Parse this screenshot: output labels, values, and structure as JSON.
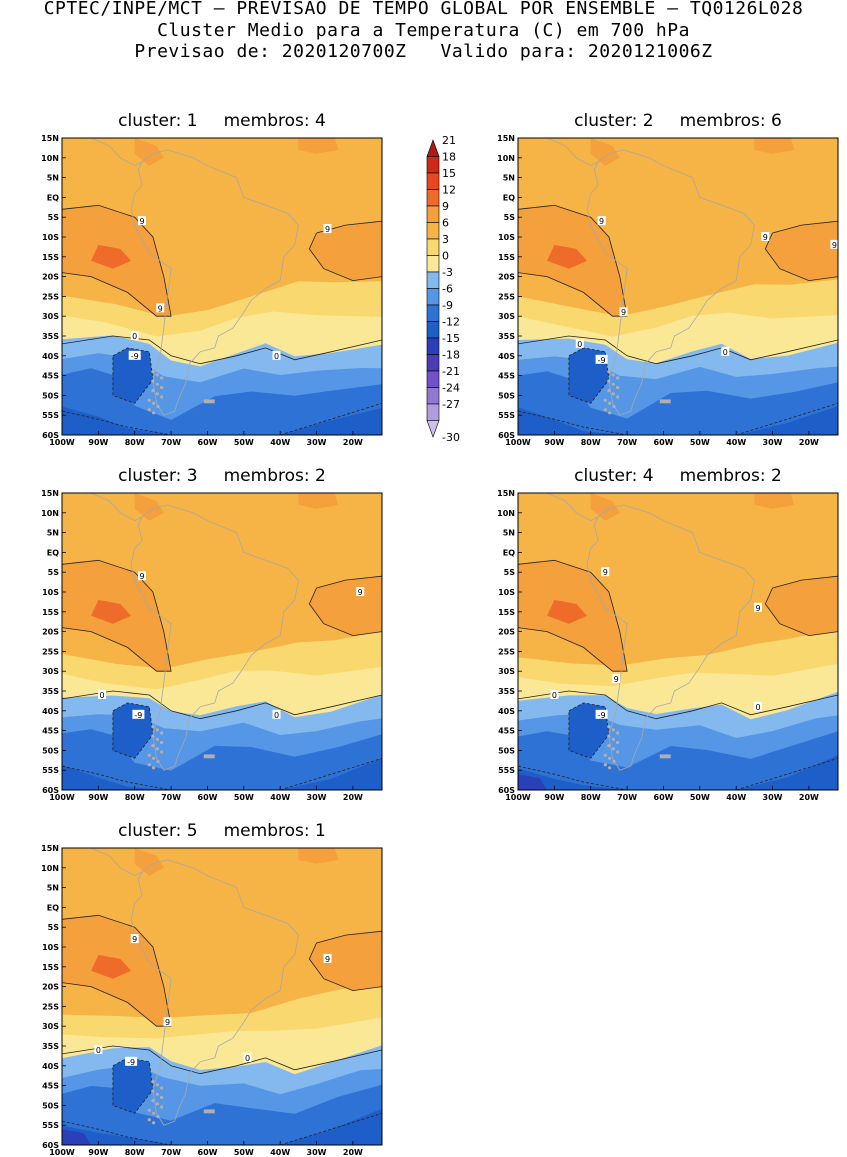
{
  "header": {
    "line1": "CPTEC/INPE/MCT — PREVISAO DE TEMPO GLOBAL POR ENSEMBLE — TQ0126L028",
    "line2": "Cluster Medio para a Temperatura (C) em 700 hPa",
    "line3": "Previsao de: 2020120700Z   Valido para: 2020121006Z"
  },
  "chart_data": {
    "type": "heatmap",
    "variable": "Temperatura (C) em 700 hPa",
    "x_ticks": [
      "100W",
      "90W",
      "80W",
      "70W",
      "60W",
      "50W",
      "40W",
      "30W",
      "20W"
    ],
    "y_ticks": [
      "15N",
      "10N",
      "5N",
      "EQ",
      "5S",
      "10S",
      "15S",
      "20S",
      "25S",
      "30S",
      "35S",
      "40S",
      "45S",
      "50S",
      "55S",
      "60S"
    ],
    "lon_range": [
      -100,
      -12
    ],
    "lat_range": [
      -60,
      15
    ],
    "colorbar": {
      "levels": [
        "21",
        "18",
        "15",
        "12",
        "9",
        "6",
        "3",
        "0",
        "-3",
        "-6",
        "-9",
        "-12",
        "-15",
        "-18",
        "-21",
        "-24",
        "-27",
        "-30"
      ],
      "colors": [
        "#b01a12",
        "#cf2a16",
        "#e8471f",
        "#ef6b2a",
        "#f4a03c",
        "#f6b346",
        "#fad870",
        "#fbe896",
        "#84b9f0",
        "#5596e6",
        "#2f72d6",
        "#1e5ec8",
        "#2a3fb8",
        "#4b3bb8",
        "#6f52c8",
        "#9078d4",
        "#b09de0",
        "#cdc0ec"
      ]
    },
    "panels": [
      {
        "cluster": "1",
        "membros": "4",
        "labels": [
          {
            "text": "9",
            "lon": -78,
            "lat": -6
          },
          {
            "text": "9",
            "lon": -27,
            "lat": -8
          },
          {
            "text": "9",
            "lon": -73,
            "lat": -28
          },
          {
            "text": "0",
            "lon": -80,
            "lat": -35
          },
          {
            "text": "-9",
            "lon": -80,
            "lat": -40
          },
          {
            "text": "0",
            "lon": -41,
            "lat": -40
          }
        ]
      },
      {
        "cluster": "2",
        "membros": "6",
        "labels": [
          {
            "text": "9",
            "lon": -77,
            "lat": -6
          },
          {
            "text": "9",
            "lon": -32,
            "lat": -10
          },
          {
            "text": "9",
            "lon": -13,
            "lat": -12
          },
          {
            "text": "9",
            "lon": -71,
            "lat": -29
          },
          {
            "text": "0",
            "lon": -83,
            "lat": -37
          },
          {
            "text": "-9",
            "lon": -77,
            "lat": -41
          },
          {
            "text": "0",
            "lon": -43,
            "lat": -39
          }
        ]
      },
      {
        "cluster": "3",
        "membros": "2",
        "labels": [
          {
            "text": "9",
            "lon": -78,
            "lat": -6
          },
          {
            "text": "9",
            "lon": -18,
            "lat": -10
          },
          {
            "text": "0",
            "lon": -89,
            "lat": -36
          },
          {
            "text": "-9",
            "lon": -79,
            "lat": -41
          },
          {
            "text": "0",
            "lon": -41,
            "lat": -41
          }
        ]
      },
      {
        "cluster": "4",
        "membros": "2",
        "labels": [
          {
            "text": "9",
            "lon": -76,
            "lat": -5
          },
          {
            "text": "9",
            "lon": -34,
            "lat": -14
          },
          {
            "text": "9",
            "lon": -73,
            "lat": -32
          },
          {
            "text": "0",
            "lon": -90,
            "lat": -36
          },
          {
            "text": "-9",
            "lon": -77,
            "lat": -41
          },
          {
            "text": "0",
            "lon": -34,
            "lat": -39
          }
        ]
      },
      {
        "cluster": "5",
        "membros": "1",
        "labels": [
          {
            "text": "9",
            "lon": -80,
            "lat": -8
          },
          {
            "text": "9",
            "lon": -27,
            "lat": -13
          },
          {
            "text": "9",
            "lon": -71,
            "lat": -29
          },
          {
            "text": "0",
            "lon": -90,
            "lat": -36
          },
          {
            "text": "-9",
            "lon": -81,
            "lat": -39
          },
          {
            "text": "0",
            "lon": -49,
            "lat": -38
          }
        ]
      }
    ]
  },
  "panel_text": {
    "cluster_word": "cluster:",
    "membros_word": "membros:"
  }
}
